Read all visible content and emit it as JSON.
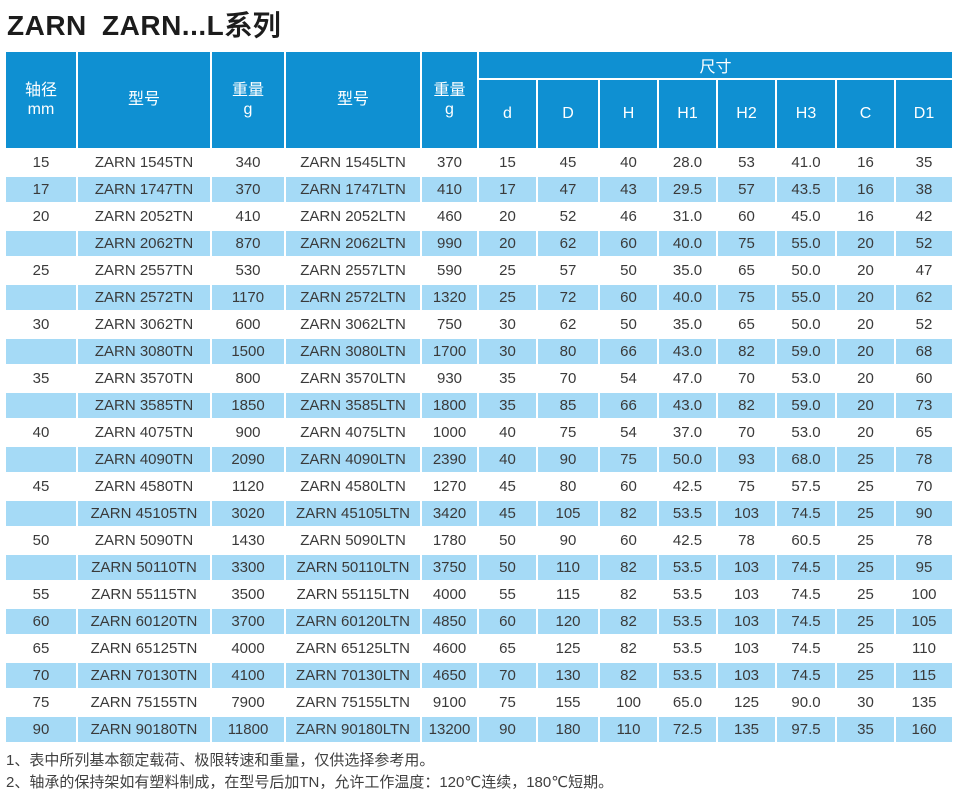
{
  "page_title": "ZARN ZARN...L系列",
  "colors": {
    "header_blue": "#0f90d2",
    "row_alt_blue": "#a5daf6",
    "row_white": "#ffffff",
    "text_dark": "#3a3a3a"
  },
  "table": {
    "dim_group_label": "尺寸",
    "left_headers": [
      {
        "label": "轴径",
        "sub": "mm"
      },
      {
        "label": "型号",
        "sub": ""
      },
      {
        "label": "重量",
        "sub": "g"
      },
      {
        "label": "型号",
        "sub": ""
      },
      {
        "label": "重量",
        "sub": "g"
      }
    ],
    "dim_headers": [
      "d",
      "D",
      "H",
      "H1",
      "H2",
      "H3",
      "C",
      "D1"
    ],
    "rows": [
      [
        "15",
        "ZARN 1545TN",
        "340",
        "ZARN 1545LTN",
        "370",
        "15",
        "45",
        "40",
        "28.0",
        "53",
        "41.0",
        "16",
        "35"
      ],
      [
        "17",
        "ZARN 1747TN",
        "370",
        "ZARN 1747LTN",
        "410",
        "17",
        "47",
        "43",
        "29.5",
        "57",
        "43.5",
        "16",
        "38"
      ],
      [
        "20",
        "ZARN 2052TN",
        "410",
        "ZARN 2052LTN",
        "460",
        "20",
        "52",
        "46",
        "31.0",
        "60",
        "45.0",
        "16",
        "42"
      ],
      [
        "",
        "ZARN 2062TN",
        "870",
        "ZARN 2062LTN",
        "990",
        "20",
        "62",
        "60",
        "40.0",
        "75",
        "55.0",
        "20",
        "52"
      ],
      [
        "25",
        "ZARN 2557TN",
        "530",
        "ZARN 2557LTN",
        "590",
        "25",
        "57",
        "50",
        "35.0",
        "65",
        "50.0",
        "20",
        "47"
      ],
      [
        "",
        "ZARN 2572TN",
        "1170",
        "ZARN 2572LTN",
        "1320",
        "25",
        "72",
        "60",
        "40.0",
        "75",
        "55.0",
        "20",
        "62"
      ],
      [
        "30",
        "ZARN 3062TN",
        "600",
        "ZARN 3062LTN",
        "750",
        "30",
        "62",
        "50",
        "35.0",
        "65",
        "50.0",
        "20",
        "52"
      ],
      [
        "",
        "ZARN 3080TN",
        "1500",
        "ZARN 3080LTN",
        "1700",
        "30",
        "80",
        "66",
        "43.0",
        "82",
        "59.0",
        "20",
        "68"
      ],
      [
        "35",
        "ZARN 3570TN",
        "800",
        "ZARN 3570LTN",
        "930",
        "35",
        "70",
        "54",
        "47.0",
        "70",
        "53.0",
        "20",
        "60"
      ],
      [
        "",
        "ZARN 3585TN",
        "1850",
        "ZARN 3585LTN",
        "1800",
        "35",
        "85",
        "66",
        "43.0",
        "82",
        "59.0",
        "20",
        "73"
      ],
      [
        "40",
        "ZARN 4075TN",
        "900",
        "ZARN 4075LTN",
        "1000",
        "40",
        "75",
        "54",
        "37.0",
        "70",
        "53.0",
        "20",
        "65"
      ],
      [
        "",
        "ZARN 4090TN",
        "2090",
        "ZARN 4090LTN",
        "2390",
        "40",
        "90",
        "75",
        "50.0",
        "93",
        "68.0",
        "25",
        "78"
      ],
      [
        "45",
        "ZARN 4580TN",
        "1120",
        "ZARN 4580LTN",
        "1270",
        "45",
        "80",
        "60",
        "42.5",
        "75",
        "57.5",
        "25",
        "70"
      ],
      [
        "",
        "ZARN 45105TN",
        "3020",
        "ZARN 45105LTN",
        "3420",
        "45",
        "105",
        "82",
        "53.5",
        "103",
        "74.5",
        "25",
        "90"
      ],
      [
        "50",
        "ZARN 5090TN",
        "1430",
        "ZARN 5090LTN",
        "1780",
        "50",
        "90",
        "60",
        "42.5",
        "78",
        "60.5",
        "25",
        "78"
      ],
      [
        "",
        "ZARN 50110TN",
        "3300",
        "ZARN 50110LTN",
        "3750",
        "50",
        "110",
        "82",
        "53.5",
        "103",
        "74.5",
        "25",
        "95"
      ],
      [
        "55",
        "ZARN 55115TN",
        "3500",
        "ZARN 55115LTN",
        "4000",
        "55",
        "115",
        "82",
        "53.5",
        "103",
        "74.5",
        "25",
        "100"
      ],
      [
        "60",
        "ZARN 60120TN",
        "3700",
        "ZARN 60120LTN",
        "4850",
        "60",
        "120",
        "82",
        "53.5",
        "103",
        "74.5",
        "25",
        "105"
      ],
      [
        "65",
        "ZARN 65125TN",
        "4000",
        "ZARN 65125LTN",
        "4600",
        "65",
        "125",
        "82",
        "53.5",
        "103",
        "74.5",
        "25",
        "110"
      ],
      [
        "70",
        "ZARN 70130TN",
        "4100",
        "ZARN 70130LTN",
        "4650",
        "70",
        "130",
        "82",
        "53.5",
        "103",
        "74.5",
        "25",
        "115"
      ],
      [
        "75",
        "ZARN 75155TN",
        "7900",
        "ZARN 75155LTN",
        "9100",
        "75",
        "155",
        "100",
        "65.0",
        "125",
        "90.0",
        "30",
        "135"
      ],
      [
        "90",
        "ZARN 90180TN",
        "11800",
        "ZARN 90180LTN",
        "13200",
        "90",
        "180",
        "110",
        "72.5",
        "135",
        "97.5",
        "35",
        "160"
      ]
    ]
  },
  "notes": [
    "1、表中所列基本额定载荷、极限转速和重量，仅供选择参考用。",
    "2、轴承的保持架如有塑料制成，在型号后加TN，允许工作温度：120℃连续，180℃短期。"
  ]
}
